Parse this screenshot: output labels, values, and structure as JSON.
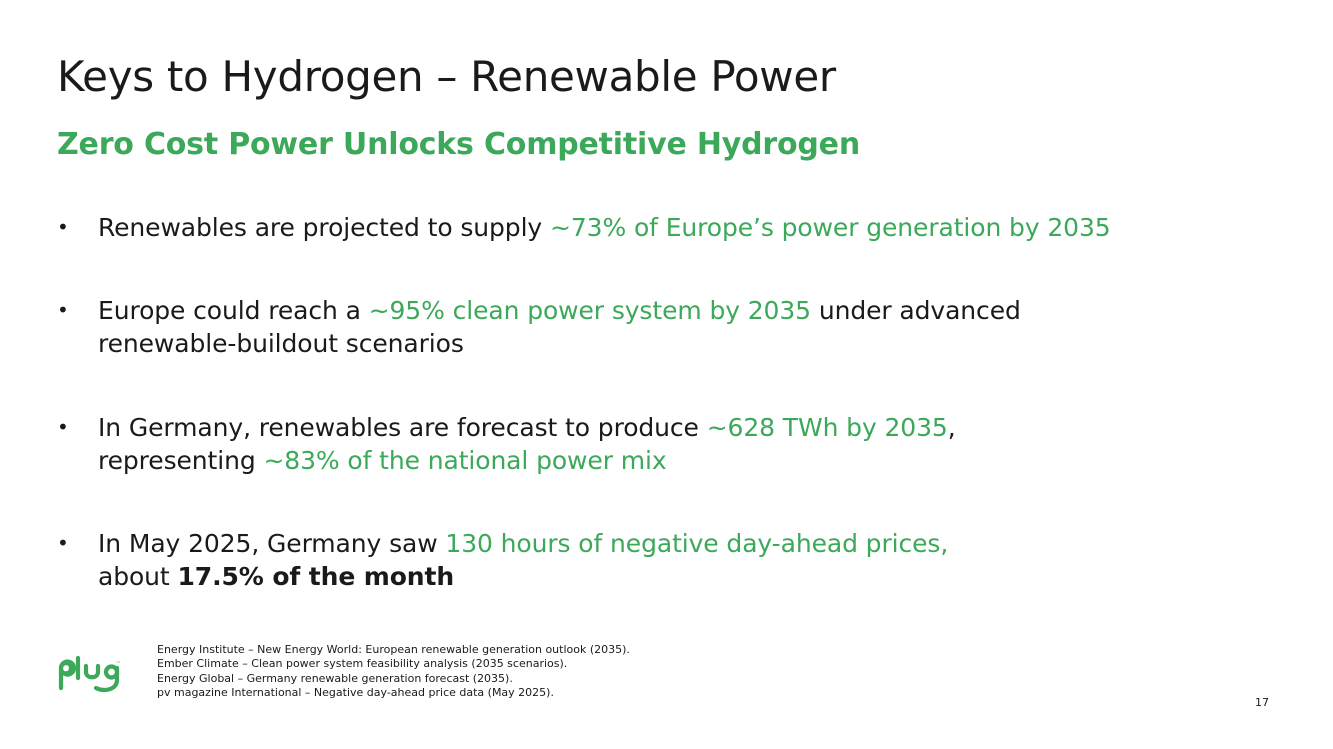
{
  "slide": {
    "title": "Keys to Hydrogen – Renewable Power",
    "subtitle": "Zero Cost Power Unlocks Competitive Hydrogen",
    "bullet_symbol": "•",
    "bullets": [
      {
        "line1_text": "Renewables are projected to supply ",
        "line1_highlight": "~73% of Europe’s power generation by 2035"
      },
      {
        "line1_text": "Europe could reach a ",
        "line1_highlight": "~95% clean power system by 2035",
        "line1_tail": " under advanced",
        "line2_text": "renewable-buildout scenarios"
      },
      {
        "line1_text": "In Germany, renewables are forecast to produce ",
        "line1_highlight": "~628 TWh by 2035",
        "line1_tail": ",",
        "line2_text": "representing ",
        "line2_highlight": "~83% of the national power mix"
      },
      {
        "line1_text": "In May 2025, Germany saw ",
        "line1_highlight": "130 hours of negative day-ahead prices,",
        "line2_text": "about ",
        "line2_bold": "17.5% of the month"
      }
    ],
    "sources": [
      "Energy Institute – New Energy World: European renewable generation outlook (2035).",
      "Ember Climate – Clean power system feasibility analysis (2035 scenarios).",
      "Energy Global – Germany renewable generation forecast (2035).",
      "pv magazine International – Negative day-ahead price data (May 2025)."
    ],
    "logo_text": "plug",
    "logo_icon": "plug-logo-icon",
    "page_number": "17",
    "colors": {
      "accent_green": "#3ca85a",
      "text": "#1a1a1a",
      "background": "#ffffff"
    }
  }
}
